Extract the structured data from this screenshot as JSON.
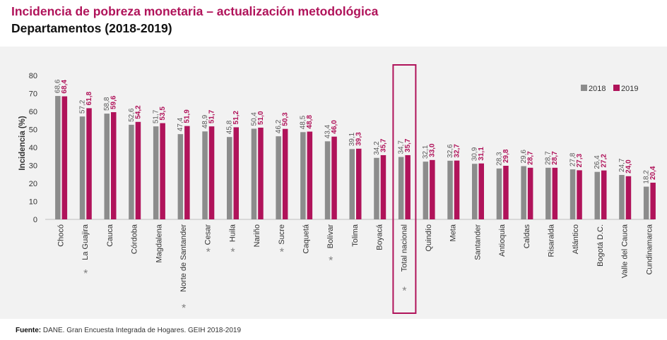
{
  "header": {
    "title": "Incidencia de pobreza monetaria – actualización metodológica",
    "subtitle": "Departamentos (2018-2019)"
  },
  "footer": {
    "source_label": "Fuente:",
    "source_text": "DANE. Gran Encuesta Integrada de Hogares. GEIH 2018-2019"
  },
  "colors": {
    "series_2018": "#8c8c8c",
    "series_2019": "#b0135a",
    "title": "#b0135a",
    "background": "#f2f2f2",
    "highlight_box": "#b0135a"
  },
  "chart_data": {
    "type": "bar",
    "title": "Incidencia de pobreza monetaria – actualización metodológica",
    "subtitle": "Departamentos (2018-2019)",
    "xlabel": "",
    "ylabel": "Incidencia (%)",
    "ylim": [
      0,
      80
    ],
    "yticks": [
      0,
      10,
      20,
      30,
      40,
      50,
      60,
      70,
      80
    ],
    "grid": false,
    "legend_position": "top-right",
    "categories": [
      "Chocó",
      "La Guajira",
      "Cauca",
      "Córdoba",
      "Magdalena",
      "Norte de Santander",
      "Cesar",
      "Huila",
      "Nariño",
      "Sucre",
      "Caquetá",
      "Bolívar",
      "Tolima",
      "Boyacá",
      "Total nacional",
      "Quindío",
      "Meta",
      "Santander",
      "Antioquia",
      "Caldas",
      "Risaralda",
      "Atlántico",
      "Bogotá D.C.",
      "Valle del Cauca",
      "Cundinamarca"
    ],
    "asterisk": [
      false,
      true,
      false,
      false,
      false,
      true,
      true,
      true,
      false,
      true,
      false,
      true,
      false,
      false,
      true,
      false,
      false,
      false,
      false,
      false,
      false,
      false,
      false,
      false,
      false
    ],
    "highlighted_category": "Total nacional",
    "series": [
      {
        "name": "2018",
        "values": [
          68.6,
          57.2,
          58.8,
          52.6,
          51.7,
          47.4,
          48.9,
          45.8,
          50.4,
          46.2,
          48.5,
          43.4,
          39.1,
          34.2,
          34.7,
          32.1,
          32.6,
          30.9,
          28.3,
          29.6,
          28.7,
          27.8,
          26.4,
          24.7,
          18.2
        ]
      },
      {
        "name": "2019",
        "values": [
          68.4,
          61.8,
          59.6,
          54.2,
          53.5,
          51.9,
          51.7,
          51.2,
          51.0,
          50.3,
          48.8,
          46.0,
          39.3,
          35.7,
          35.7,
          33.0,
          32.7,
          31.1,
          29.8,
          28.7,
          28.7,
          27.3,
          27.2,
          24.0,
          20.4
        ]
      }
    ],
    "value_labels": [
      [
        "68,6",
        "57,2",
        "58,8",
        "52,6",
        "51,7",
        "47,4",
        "48,9",
        "45,8",
        "50,4",
        "46,2",
        "48,5",
        "43,4",
        "39,1",
        "34,2",
        "34,7",
        "32,1",
        "32,6",
        "30,9",
        "28,3",
        "29,6",
        "28,7",
        "27,8",
        "26,4",
        "24,7",
        "18,2"
      ],
      [
        "68,4",
        "61,8",
        "59,6",
        "54,2",
        "53,5",
        "51,9",
        "51,7",
        "51,2",
        "51,0",
        "50,3",
        "48,8",
        "46,0",
        "39,3",
        "35,7",
        "35,7",
        "33,0",
        "32,7",
        "31,1",
        "29,8",
        "28,7",
        "28,7",
        "27,3",
        "27,2",
        "24,0",
        "20,4"
      ]
    ]
  }
}
